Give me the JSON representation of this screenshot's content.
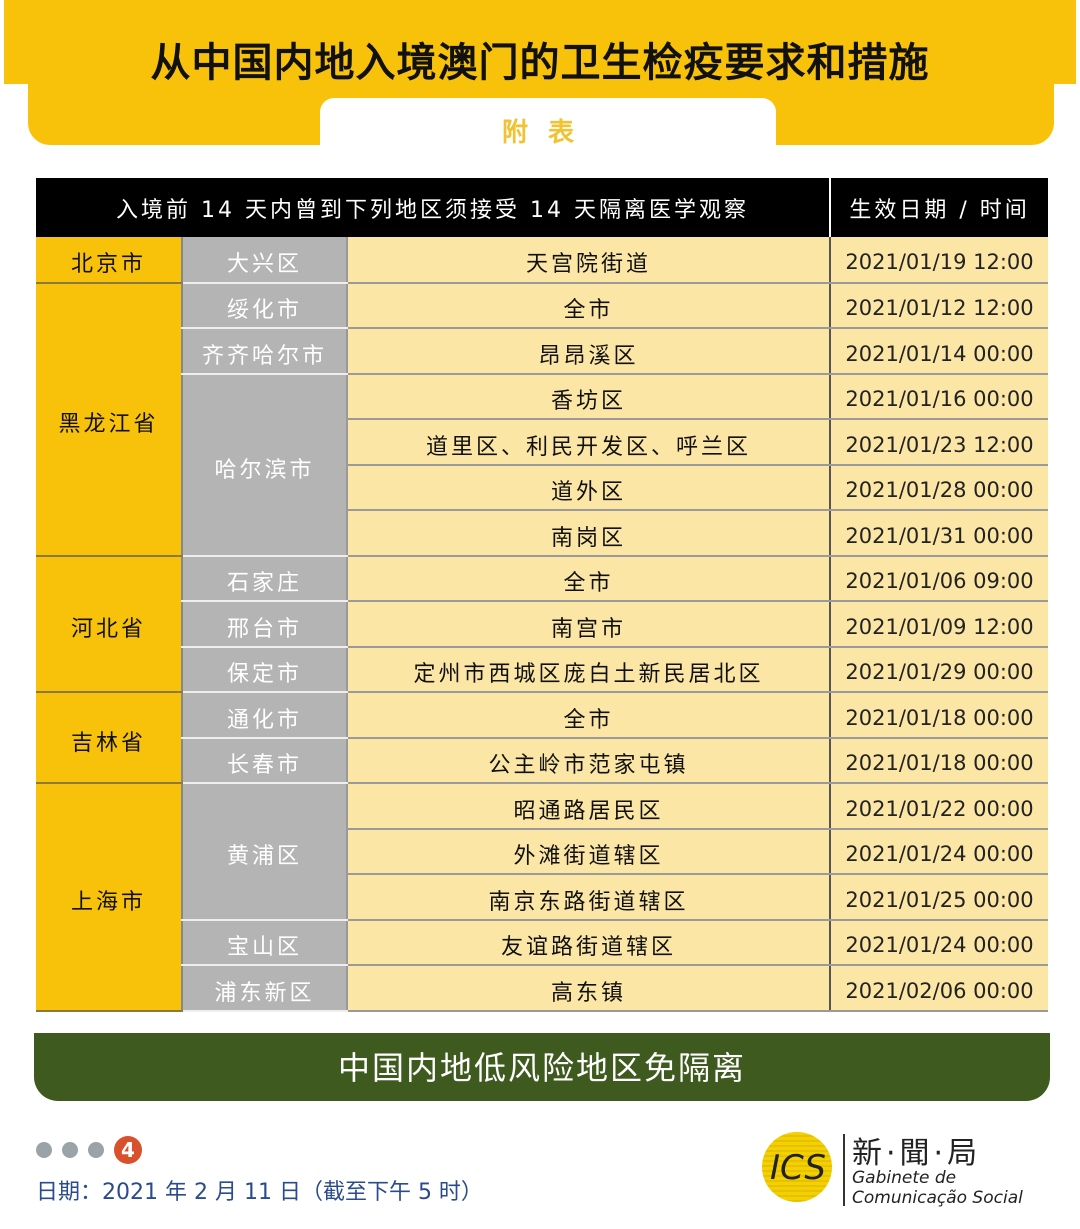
{
  "title": "从中国内地入境澳门的卫生检疫要求和措施",
  "subtitle": "附表",
  "table": {
    "header_left": "入境前 14 天内曾到下列地区须接受 14 天隔离医学观察",
    "header_right": "生效日期 / 时间",
    "rows": [
      {
        "province": "北京市",
        "city": "大兴区",
        "area": "天宫院街道",
        "date": "2021/01/19 12:00"
      },
      {
        "province": "黑龙江省",
        "city": "绥化市",
        "area": "全市",
        "date": "2021/01/12 12:00"
      },
      {
        "province": "",
        "city": "齐齐哈尔市",
        "area": "昂昂溪区",
        "date": "2021/01/14 00:00"
      },
      {
        "province": "",
        "city": "哈尔滨市",
        "area": "香坊区",
        "date": "2021/01/16 00:00"
      },
      {
        "province": "",
        "city": "",
        "area": "道里区、利民开发区、呼兰区",
        "date": "2021/01/23 12:00"
      },
      {
        "province": "",
        "city": "",
        "area": "道外区",
        "date": "2021/01/28 00:00"
      },
      {
        "province": "",
        "city": "",
        "area": "南岗区",
        "date": "2021/01/31 00:00"
      },
      {
        "province": "河北省",
        "city": "石家庄",
        "area": "全市",
        "date": "2021/01/06 09:00"
      },
      {
        "province": "",
        "city": "邢台市",
        "area": "南宫市",
        "date": "2021/01/09 12:00"
      },
      {
        "province": "",
        "city": "保定市",
        "area": "定州市西城区庞白土新民居北区",
        "date": "2021/01/29 00:00"
      },
      {
        "province": "吉林省",
        "city": "通化市",
        "area": "全市",
        "date": "2021/01/18 00:00"
      },
      {
        "province": "",
        "city": "长春市",
        "area": "公主岭市范家屯镇",
        "date": "2021/01/18 00:00"
      },
      {
        "province": "上海市",
        "city": "黄浦区",
        "area": "昭通路居民区",
        "date": "2021/01/22 00:00"
      },
      {
        "province": "",
        "city": "",
        "area": "外滩街道辖区",
        "date": "2021/01/24 00:00"
      },
      {
        "province": "",
        "city": "",
        "area": "南京东路街道辖区",
        "date": "2021/01/25 00:00"
      },
      {
        "province": "",
        "city": "宝山区",
        "area": "友谊路街道辖区",
        "date": "2021/01/24 00:00"
      },
      {
        "province": "",
        "city": "浦东新区",
        "area": "高东镇",
        "date": "2021/02/06 00:00"
      }
    ]
  },
  "banner": "中国内地低风险地区免隔离",
  "pager": {
    "current": "4",
    "total_dots": 4
  },
  "date_line": "日期：2021 年 2 月 11 日（截至下午 5 时）",
  "logo": {
    "abbr": "ICS",
    "zh": "新·聞·局",
    "pt1": "Gabinete de",
    "pt2": "Comunicação Social"
  },
  "colors": {
    "yellow": "#f9c20a",
    "gray": "#b4b4b4",
    "cream": "#fbe6a6",
    "green": "#3f5a1e",
    "page_badge": "#d9512c"
  }
}
